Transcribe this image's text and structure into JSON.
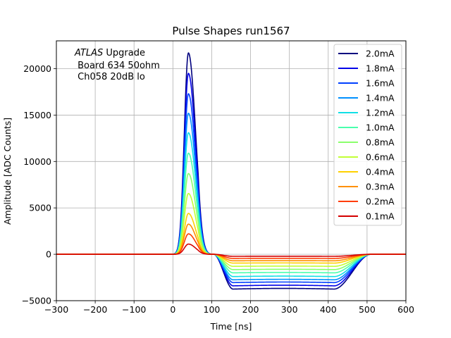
{
  "chart_data": {
    "type": "line",
    "title": "Pulse Shapes run1567",
    "xlabel": "Time [ns]",
    "ylabel": "Amplitude [ADC Counts]",
    "xlim": [
      -300,
      600
    ],
    "ylim": [
      -5000,
      23000
    ],
    "xticks": [
      -300,
      -200,
      -100,
      0,
      100,
      200,
      300,
      400,
      500,
      600
    ],
    "xtick_labels": [
      "−300",
      "−200",
      "−100",
      "0",
      "100",
      "200",
      "300",
      "400",
      "500",
      "600"
    ],
    "yticks": [
      -5000,
      0,
      5000,
      10000,
      15000,
      20000
    ],
    "ytick_labels": [
      "−5000",
      "0",
      "5000",
      "10000",
      "15000",
      "20000"
    ],
    "grid": true,
    "legend_position": "top-right",
    "annotation": {
      "italic": "ATLAS",
      "line1_rest": " Upgrade",
      "line2": " Board 634 50ohm",
      "line3": " Ch058 20dB lo"
    },
    "pulse_model": {
      "baseline_end": 0,
      "peak_time": 40,
      "zero_cross": 105,
      "undershoot_start": 155,
      "undershoot_end": 415,
      "recovery_end": 510
    },
    "series": [
      {
        "name": "2.0mA",
        "color": "#00007f",
        "peak": 21700,
        "undershoot": -3750
      },
      {
        "name": "1.8mA",
        "color": "#0000e8",
        "peak": 19500,
        "undershoot": -3400
      },
      {
        "name": "1.6mA",
        "color": "#0040ff",
        "peak": 17300,
        "undershoot": -3050
      },
      {
        "name": "1.4mA",
        "color": "#0090ff",
        "peak": 15200,
        "undershoot": -2750
      },
      {
        "name": "1.2mA",
        "color": "#10dfe6",
        "peak": 13100,
        "undershoot": -2400
      },
      {
        "name": "1.0mA",
        "color": "#4affad",
        "peak": 10900,
        "undershoot": -2000
      },
      {
        "name": "0.8mA",
        "color": "#8aff6c",
        "peak": 8700,
        "undershoot": -1650
      },
      {
        "name": "0.6mA",
        "color": "#c1ff36",
        "peak": 6550,
        "undershoot": -1300
      },
      {
        "name": "0.4mA",
        "color": "#ffd100",
        "peak": 4400,
        "undershoot": -950
      },
      {
        "name": "0.3mA",
        "color": "#ff9000",
        "peak": 3250,
        "undershoot": -700
      },
      {
        "name": "0.2mA",
        "color": "#ff3c00",
        "peak": 2200,
        "undershoot": -450
      },
      {
        "name": "0.1mA",
        "color": "#d40000",
        "peak": 1100,
        "undershoot": -220
      }
    ]
  }
}
